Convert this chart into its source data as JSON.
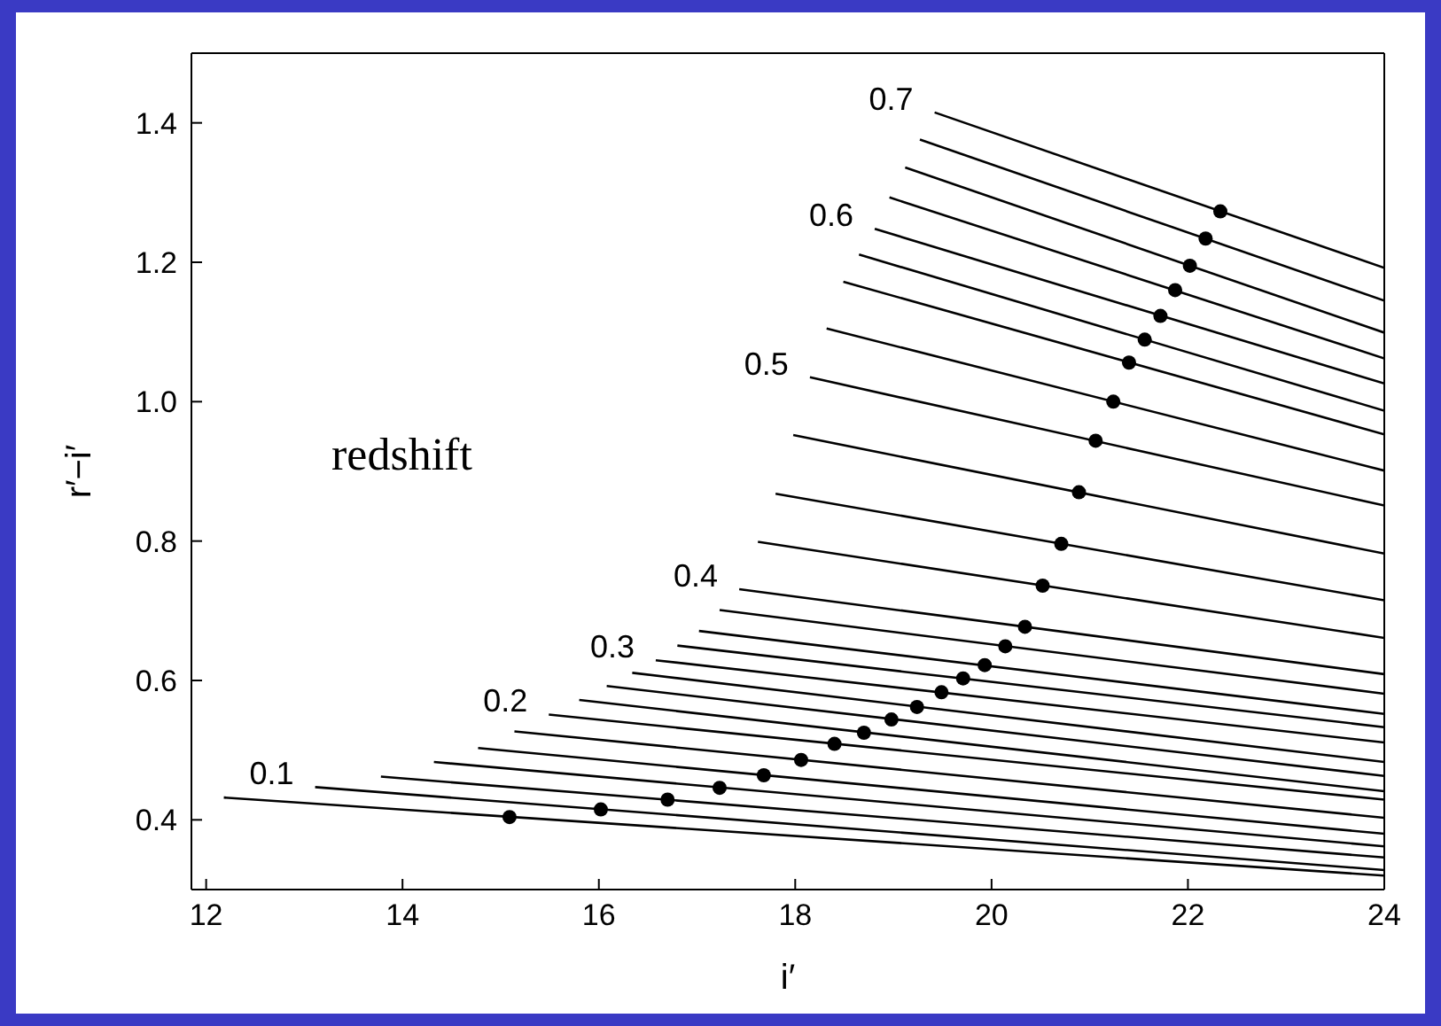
{
  "chart_data": {
    "type": "line",
    "xlabel": "i′",
    "ylabel": "r′−i′",
    "xlim": [
      11.85,
      24
    ],
    "ylim": [
      0.3,
      1.5
    ],
    "xticks": [
      12,
      14,
      16,
      18,
      20,
      22,
      24
    ],
    "yticks": [
      0.4,
      0.6,
      0.8,
      {
        "value": 1,
        "label": "1.0"
      },
      1.2,
      1.4
    ],
    "series": [
      {
        "color": "#000000",
        "x": [
          12.18,
          24
        ],
        "values": [
          0.432,
          0.32
        ]
      },
      {
        "color": "#000000",
        "x": [
          13.11,
          24
        ],
        "values": [
          0.447,
          0.328
        ]
      },
      {
        "color": "#000000",
        "x": [
          13.78,
          24
        ],
        "values": [
          0.462,
          0.346
        ]
      },
      {
        "color": "#000000",
        "x": [
          14.32,
          24
        ],
        "values": [
          0.483,
          0.362
        ]
      },
      {
        "color": "#000000",
        "x": [
          14.77,
          24
        ],
        "values": [
          0.503,
          0.38
        ]
      },
      {
        "color": "#000000",
        "x": [
          15.14,
          24
        ],
        "values": [
          0.527,
          0.403
        ]
      },
      {
        "color": "#000000",
        "x": [
          15.49,
          24
        ],
        "values": [
          0.551,
          0.429
        ]
      },
      {
        "color": "#000000",
        "x": [
          15.8,
          24
        ],
        "values": [
          0.572,
          0.441
        ]
      },
      {
        "color": "#000000",
        "x": [
          16.08,
          24
        ],
        "values": [
          0.592,
          0.463
        ]
      },
      {
        "color": "#000000",
        "x": [
          16.34,
          24
        ],
        "values": [
          0.611,
          0.483
        ]
      },
      {
        "color": "#000000",
        "x": [
          16.58,
          24
        ],
        "values": [
          0.629,
          0.511
        ]
      },
      {
        "color": "#000000",
        "x": [
          16.8,
          24
        ],
        "values": [
          0.65,
          0.533
        ]
      },
      {
        "color": "#000000",
        "x": [
          17.02,
          24
        ],
        "values": [
          0.671,
          0.552
        ]
      },
      {
        "color": "#000000",
        "x": [
          17.23,
          24
        ],
        "values": [
          0.701,
          0.581
        ]
      },
      {
        "color": "#000000",
        "x": [
          17.43,
          24
        ],
        "values": [
          0.731,
          0.609
        ]
      },
      {
        "color": "#000000",
        "x": [
          17.62,
          24
        ],
        "values": [
          0.799,
          0.661
        ]
      },
      {
        "color": "#000000",
        "x": [
          17.8,
          24
        ],
        "values": [
          0.868,
          0.715
        ]
      },
      {
        "color": "#000000",
        "x": [
          17.98,
          24
        ],
        "values": [
          0.952,
          0.782
        ]
      },
      {
        "color": "#000000",
        "x": [
          18.15,
          24
        ],
        "values": [
          1.035,
          0.851
        ]
      },
      {
        "color": "#000000",
        "x": [
          18.32,
          24
        ],
        "values": [
          1.105,
          0.901
        ]
      },
      {
        "color": "#000000",
        "x": [
          18.49,
          24
        ],
        "values": [
          1.172,
          0.953
        ]
      },
      {
        "color": "#000000",
        "x": [
          18.65,
          24
        ],
        "values": [
          1.211,
          0.987
        ]
      },
      {
        "color": "#000000",
        "x": [
          18.81,
          24
        ],
        "values": [
          1.248,
          1.026
        ]
      },
      {
        "color": "#000000",
        "x": [
          18.96,
          24
        ],
        "values": [
          1.293,
          1.062
        ]
      },
      {
        "color": "#000000",
        "x": [
          19.12,
          24
        ],
        "values": [
          1.336,
          1.099
        ]
      },
      {
        "color": "#000000",
        "x": [
          19.27,
          24
        ],
        "values": [
          1.376,
          1.145
        ]
      },
      {
        "color": "#000000",
        "x": [
          19.42,
          24
        ],
        "values": [
          1.415,
          1.192
        ]
      },
      {
        "type": "scatter",
        "marker": "circle",
        "color": "#000000",
        "x": [
          15.09,
          16.02,
          16.7,
          17.23,
          17.68,
          18.06,
          18.4,
          18.7,
          18.98,
          19.24,
          19.49,
          19.71,
          19.93,
          20.14,
          20.34,
          20.52,
          20.71,
          20.89,
          21.06,
          21.24,
          21.4,
          21.56,
          21.72,
          21.87,
          22.02,
          22.18,
          22.33
        ],
        "values": [
          0.404,
          0.415,
          0.429,
          0.446,
          0.464,
          0.486,
          0.509,
          0.525,
          0.544,
          0.562,
          0.583,
          0.603,
          0.622,
          0.649,
          0.677,
          0.736,
          0.796,
          0.87,
          0.944,
          1.0,
          1.056,
          1.089,
          1.123,
          1.16,
          1.195,
          1.234,
          1.273
        ]
      }
    ],
    "annotations": [
      {
        "text": "0.1",
        "x": 13.11,
        "y": 0.447
      },
      {
        "text": "0.2",
        "x": 15.49,
        "y": 0.551
      },
      {
        "text": "0.3",
        "x": 16.58,
        "y": 0.629
      },
      {
        "text": "0.4",
        "x": 17.43,
        "y": 0.731
      },
      {
        "text": "0.5",
        "x": 18.15,
        "y": 1.035
      },
      {
        "text": "0.6",
        "x": 18.81,
        "y": 1.248
      },
      {
        "text": "0.7",
        "x": 19.42,
        "y": 1.415
      },
      "redshift"
    ]
  }
}
